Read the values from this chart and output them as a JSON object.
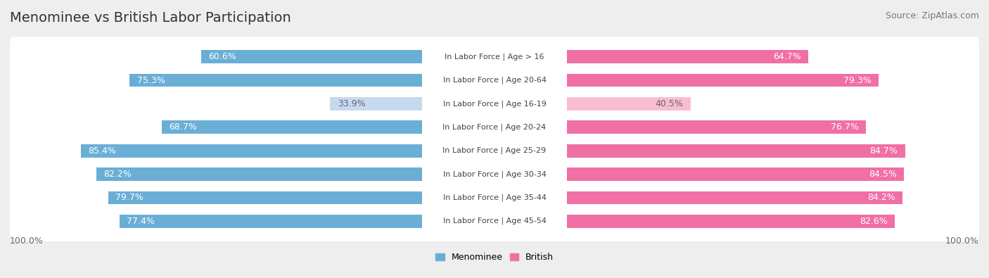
{
  "title": "Menominee vs British Labor Participation",
  "source": "Source: ZipAtlas.com",
  "categories": [
    "In Labor Force | Age > 16",
    "In Labor Force | Age 20-64",
    "In Labor Force | Age 16-19",
    "In Labor Force | Age 20-24",
    "In Labor Force | Age 25-29",
    "In Labor Force | Age 30-34",
    "In Labor Force | Age 35-44",
    "In Labor Force | Age 45-54"
  ],
  "menominee_values": [
    60.6,
    75.3,
    33.9,
    68.7,
    85.4,
    82.2,
    79.7,
    77.4
  ],
  "british_values": [
    64.7,
    79.3,
    40.5,
    76.7,
    84.7,
    84.5,
    84.2,
    82.6
  ],
  "menominee_color_strong": "#6aaed6",
  "menominee_color_light": "#c6d9f0",
  "british_color_strong": "#f06fa4",
  "british_color_light": "#f9bdd3",
  "background_color": "#eeeeee",
  "row_background": "#ffffff",
  "title_fontsize": 14,
  "source_fontsize": 9,
  "bar_label_fontsize": 9,
  "category_fontsize": 8,
  "legend_fontsize": 9,
  "axis_label_fontsize": 9,
  "max_value": 100.0,
  "strong_threshold": 60
}
